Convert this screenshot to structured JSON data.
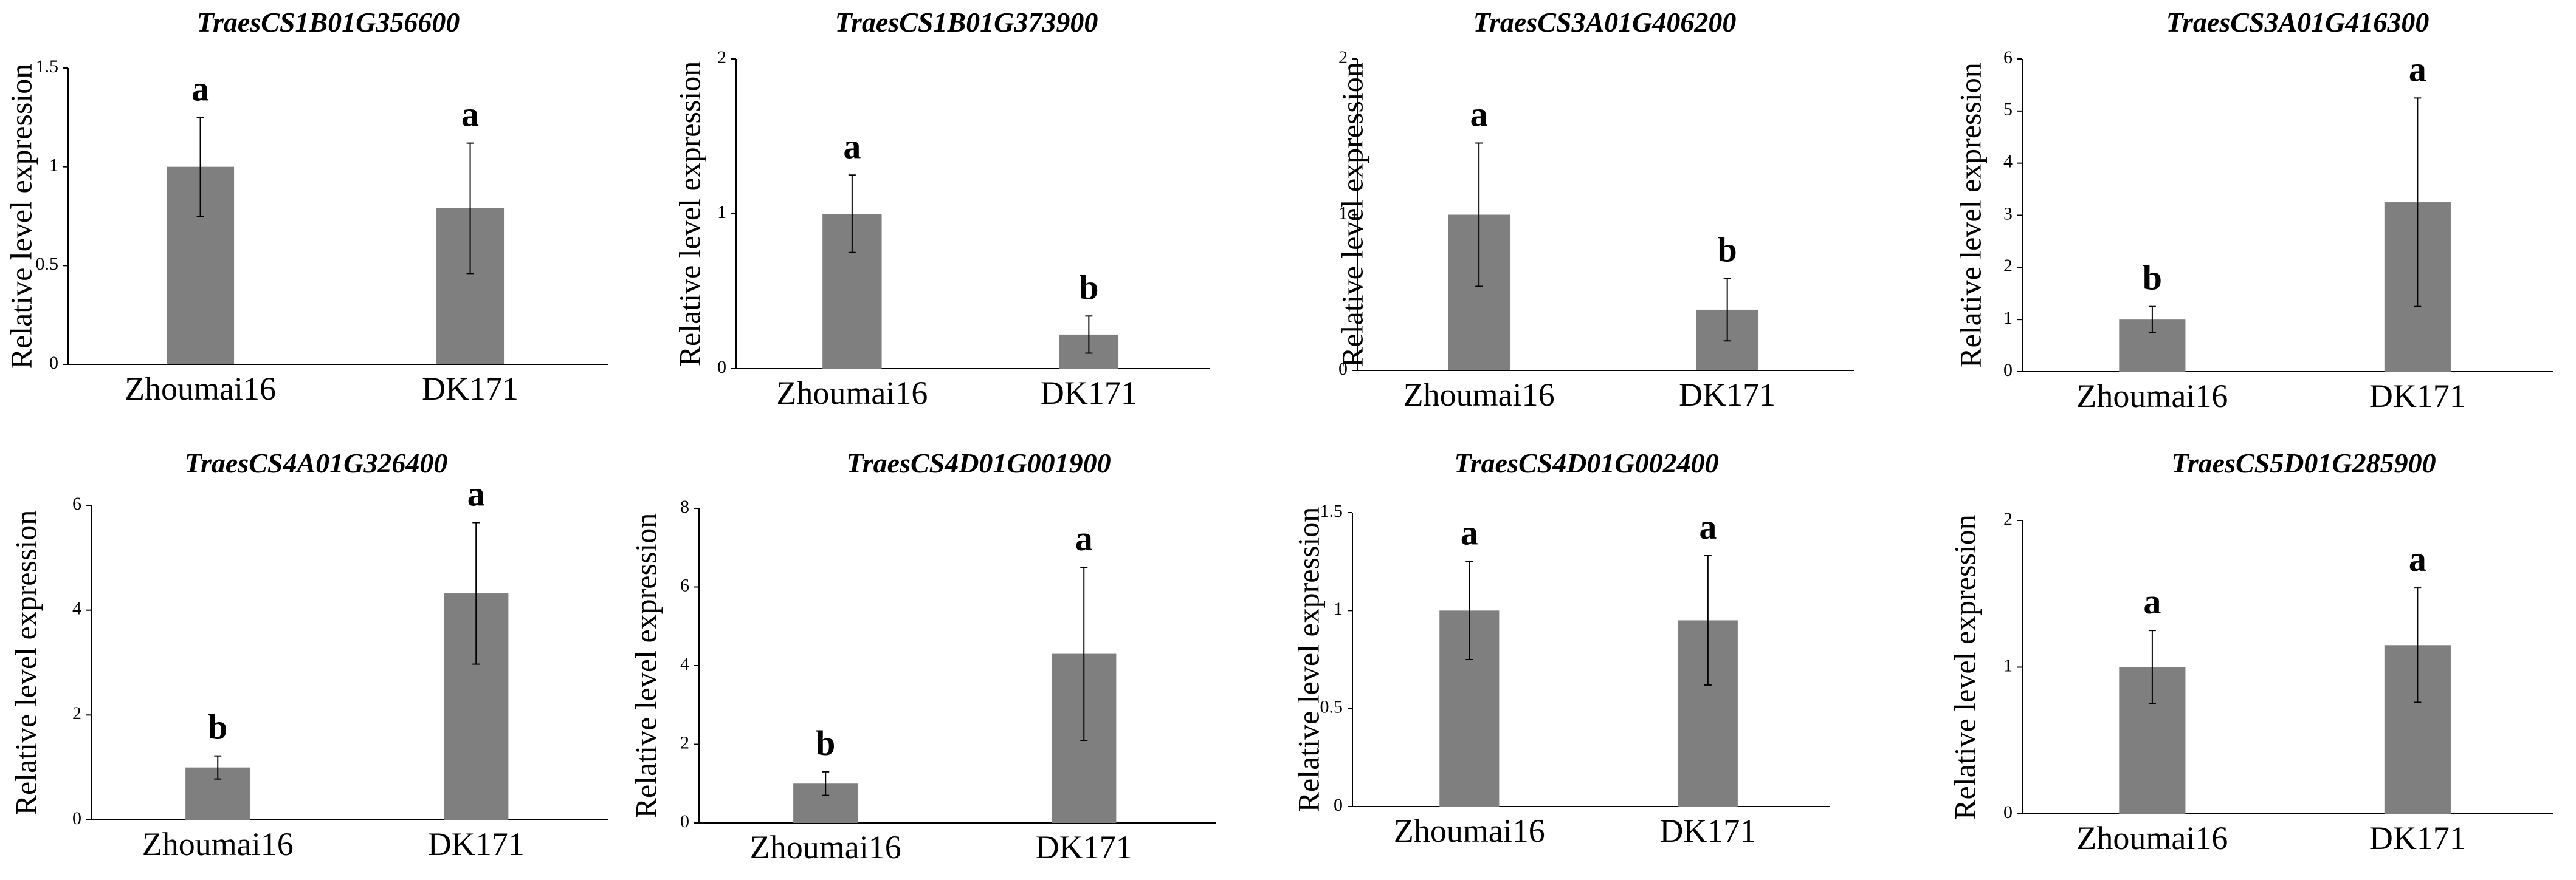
{
  "figure": {
    "y_axis_label": "Relative level expression",
    "bar_color": "#7f7f7f"
  },
  "chart_data": [
    {
      "type": "bar",
      "title": "TraesCS1B01G356600",
      "categories": [
        "Zhoumai16",
        "DK171"
      ],
      "values": [
        1.0,
        0.79
      ],
      "errors": [
        0.25,
        0.33
      ],
      "significance": [
        "a",
        "a"
      ],
      "ylabel": "Relative level expression",
      "ylim": [
        0,
        1.5
      ],
      "yticks": [
        0,
        0.5,
        1,
        1.5
      ],
      "ytick_labels": [
        "0",
        "0.5",
        "1",
        "1.5"
      ]
    },
    {
      "type": "bar",
      "title": "TraesCS1B01G373900",
      "categories": [
        "Zhoumai16",
        "DK171"
      ],
      "values": [
        1.0,
        0.22
      ],
      "errors": [
        0.25,
        0.12
      ],
      "significance": [
        "a",
        "b"
      ],
      "ylabel": "Relative level expression",
      "ylim": [
        0,
        2
      ],
      "yticks": [
        0,
        1,
        2
      ],
      "ytick_labels": [
        "0",
        "1",
        "2"
      ]
    },
    {
      "type": "bar",
      "title": "TraesCS3A01G406200",
      "categories": [
        "Zhoumai16",
        "DK171"
      ],
      "values": [
        1.0,
        0.39
      ],
      "errors": [
        0.46,
        0.2
      ],
      "significance": [
        "a",
        "b"
      ],
      "ylabel": "Relative level expression",
      "ylim": [
        0,
        2
      ],
      "yticks": [
        0,
        1,
        2
      ],
      "ytick_labels": [
        "0",
        "1",
        "2"
      ]
    },
    {
      "type": "bar",
      "title": "TraesCS3A01G416300",
      "categories": [
        "Zhoumai16",
        "DK171"
      ],
      "values": [
        1.0,
        3.25
      ],
      "errors": [
        0.25,
        2.0
      ],
      "significance": [
        "b",
        "a"
      ],
      "ylabel": "Relative level expression",
      "ylim": [
        0,
        6
      ],
      "yticks": [
        0,
        1,
        2,
        3,
        4,
        5,
        6
      ],
      "ytick_labels": [
        "0",
        "1",
        "2",
        "3",
        "4",
        "5",
        "6"
      ]
    },
    {
      "type": "bar",
      "title": "TraesCS4A01G326400",
      "categories": [
        "Zhoumai16",
        "DK171"
      ],
      "values": [
        1.0,
        4.32
      ],
      "errors": [
        0.22,
        1.35
      ],
      "significance": [
        "b",
        "a"
      ],
      "ylabel": "Relative level expression",
      "ylim": [
        0,
        6
      ],
      "yticks": [
        0,
        2,
        4,
        6
      ],
      "ytick_labels": [
        "0",
        "2",
        "4",
        "6"
      ]
    },
    {
      "type": "bar",
      "title": "TraesCS4D01G001900",
      "categories": [
        "Zhoumai16",
        "DK171"
      ],
      "values": [
        1.0,
        4.3
      ],
      "errors": [
        0.3,
        2.2
      ],
      "significance": [
        "b",
        "a"
      ],
      "ylabel": "Relative level expression",
      "ylim": [
        0,
        8
      ],
      "yticks": [
        0,
        2,
        4,
        6,
        8
      ],
      "ytick_labels": [
        "0",
        "2",
        "4",
        "6",
        "8"
      ]
    },
    {
      "type": "bar",
      "title": "TraesCS4D01G002400",
      "categories": [
        "Zhoumai16",
        "DK171"
      ],
      "values": [
        1.0,
        0.95
      ],
      "errors": [
        0.25,
        0.33
      ],
      "significance": [
        "a",
        "a"
      ],
      "ylabel": "Relative level expression",
      "ylim": [
        0,
        1.5
      ],
      "yticks": [
        0,
        0.5,
        1,
        1.5
      ],
      "ytick_labels": [
        "0",
        "0.5",
        "1",
        "1.5"
      ]
    },
    {
      "type": "bar",
      "title": "TraesCS5D01G285900",
      "categories": [
        "Zhoumai16",
        "DK171"
      ],
      "values": [
        1.0,
        1.15
      ],
      "errors": [
        0.25,
        0.39
      ],
      "significance": [
        "a",
        "a"
      ],
      "ylabel": "Relative level expression",
      "ylim": [
        0,
        2
      ],
      "yticks": [
        0,
        1,
        2
      ],
      "ytick_labels": [
        "0",
        "1",
        "2"
      ]
    }
  ]
}
